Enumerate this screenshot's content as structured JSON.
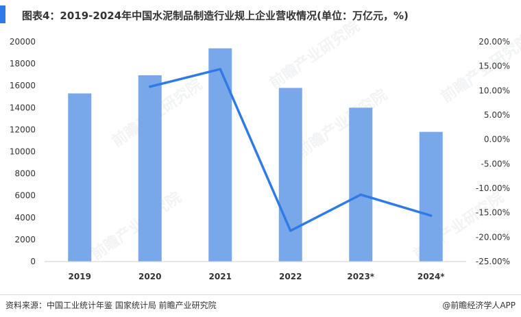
{
  "title": "图表4：2019-2024年中国水泥制品制造行业规上企业营收情况(单位：万亿元，%)",
  "source": "资料来源：中国工业统计年鉴 国家统计局 前瞻产业研究院",
  "credit": "@前瞻经济学人APP",
  "watermark": "前瞻产业研究院",
  "colors": {
    "bar": "#79a8ea",
    "line": "#2e7be8",
    "accent": "#2e7be8"
  },
  "chart_data": {
    "type": "bar",
    "categories": [
      "2019",
      "2020",
      "2021",
      "2022",
      "2023*",
      "2024*"
    ],
    "series": [
      {
        "type": "bar",
        "axis": "left",
        "values": [
          15300,
          16950,
          19400,
          15800,
          14000,
          11800
        ]
      },
      {
        "type": "line",
        "axis": "right",
        "values": [
          null,
          10.8,
          14.4,
          -18.7,
          -11.3,
          -15.6
        ]
      }
    ],
    "ylim_left": [
      0,
      20000
    ],
    "yticks_left": [
      "20000",
      "18000",
      "16000",
      "14000",
      "12000",
      "10000",
      "8000",
      "6000",
      "4000",
      "2000",
      "0"
    ],
    "ylim_right": [
      -25,
      20
    ],
    "yticks_right": [
      "20.00%",
      "15.00%",
      "10.00%",
      "5.00%",
      "0.00%",
      "-5.00%",
      "-10.00%",
      "-15.00%",
      "-20.00%",
      "-25.00%"
    ],
    "grid": false,
    "legend": "none"
  }
}
